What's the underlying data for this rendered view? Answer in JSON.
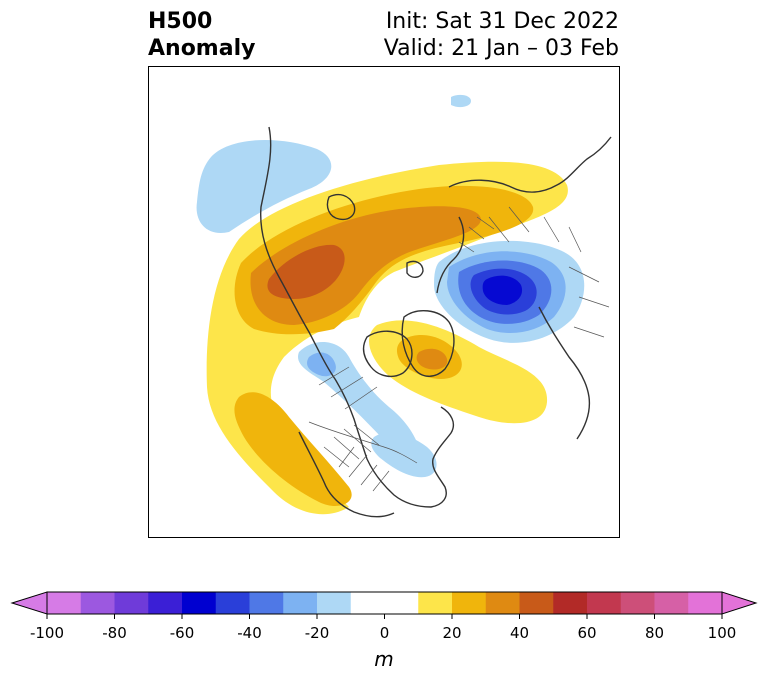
{
  "title": {
    "left_line1": "H500",
    "left_line2": "Anomaly",
    "init": "Init: Sat 31 Dec 2022",
    "valid": "Valid: 21 Jan – 03 Feb"
  },
  "colorbar": {
    "unit": "m",
    "tick_labels": [
      "-100",
      "-80",
      "-60",
      "-40",
      "-20",
      "0",
      "20",
      "40",
      "60",
      "80",
      "100"
    ],
    "levels": [
      -100,
      -90,
      -80,
      -70,
      -60,
      -50,
      -40,
      -30,
      -20,
      -10,
      10,
      20,
      30,
      40,
      50,
      60,
      70,
      80,
      90,
      100
    ],
    "colors": [
      "#d67be6",
      "#9c58e0",
      "#6f3bd9",
      "#3b1fd6",
      "#0000d0",
      "#2a3fd9",
      "#4f78e6",
      "#7db2f2",
      "#aed8f5",
      "#ffffff",
      "#fde54a",
      "#f0b50c",
      "#df8a12",
      "#c85a19",
      "#b22a27",
      "#c2384f",
      "#cd4f79",
      "#d660a6",
      "#e372d8"
    ],
    "under_color": "#d67be6",
    "over_color": "#e372d8"
  },
  "anomaly_features": [
    {
      "name": "positive-ridge-north-america-arctic",
      "sign": "positive",
      "peak_value": 50
    },
    {
      "name": "negative-trough-siberia",
      "sign": "negative",
      "peak_value": -70
    },
    {
      "name": "positive-greenland-atlantic",
      "sign": "positive",
      "peak_value": 40
    },
    {
      "name": "positive-southwest-us",
      "sign": "positive",
      "peak_value": 30
    },
    {
      "name": "negative-pacific-alaska",
      "sign": "negative",
      "peak_value": -20
    },
    {
      "name": "negative-eastern-us",
      "sign": "negative",
      "peak_value": -20
    }
  ]
}
